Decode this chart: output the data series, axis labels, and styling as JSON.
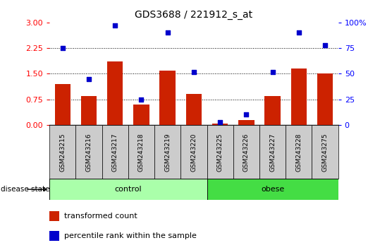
{
  "title": "GDS3688 / 221912_s_at",
  "samples": [
    "GSM243215",
    "GSM243216",
    "GSM243217",
    "GSM243218",
    "GSM243219",
    "GSM243220",
    "GSM243225",
    "GSM243226",
    "GSM243227",
    "GSM243228",
    "GSM243275"
  ],
  "transformed_count": [
    1.2,
    0.85,
    1.85,
    0.6,
    1.6,
    0.9,
    0.05,
    0.15,
    0.85,
    1.65,
    1.5
  ],
  "percentile_rank": [
    75,
    45,
    97,
    25,
    90,
    52,
    3,
    10,
    52,
    90,
    78
  ],
  "bar_color": "#CC2200",
  "dot_color": "#0000CC",
  "left_ylim": [
    0,
    3
  ],
  "right_ylim": [
    0,
    100
  ],
  "left_yticks": [
    0,
    0.75,
    1.5,
    2.25,
    3
  ],
  "right_yticks": [
    0,
    25,
    50,
    75,
    100
  ],
  "right_yticklabels": [
    "0",
    "25",
    "50",
    "75",
    "100%"
  ],
  "hlines": [
    0.75,
    1.5,
    2.25
  ],
  "figsize": [
    5.39,
    3.54
  ],
  "dpi": 100,
  "control_color": "#AAFFAA",
  "obese_color": "#44DD44",
  "ticklabel_bg": "#CCCCCC",
  "legend_items": [
    {
      "label": "transformed count",
      "color": "#CC2200"
    },
    {
      "label": "percentile rank within the sample",
      "color": "#0000CC"
    }
  ]
}
